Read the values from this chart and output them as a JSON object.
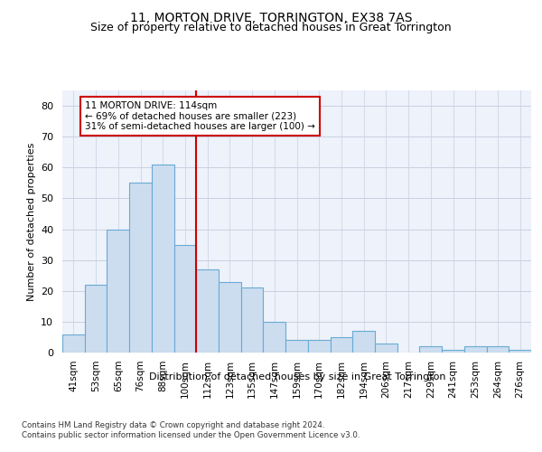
{
  "title": "11, MORTON DRIVE, TORRINGTON, EX38 7AS",
  "subtitle": "Size of property relative to detached houses in Great Torrington",
  "xlabel": "Distribution of detached houses by size in Great Torrington",
  "ylabel": "Number of detached properties",
  "categories": [
    "41sqm",
    "53sqm",
    "65sqm",
    "76sqm",
    "88sqm",
    "100sqm",
    "112sqm",
    "123sqm",
    "135sqm",
    "147sqm",
    "159sqm",
    "170sqm",
    "182sqm",
    "194sqm",
    "206sqm",
    "217sqm",
    "229sqm",
    "241sqm",
    "253sqm",
    "264sqm",
    "276sqm"
  ],
  "values": [
    6,
    22,
    40,
    55,
    61,
    35,
    27,
    23,
    21,
    10,
    4,
    4,
    5,
    7,
    3,
    0,
    2,
    1,
    2,
    2,
    1
  ],
  "bar_color": "#ccddf0",
  "bar_edge_color": "#6aaad4",
  "vline_x": 5.5,
  "vline_color": "#cc0000",
  "annotation_line1": "11 MORTON DRIVE: 114sqm",
  "annotation_line2": "← 69% of detached houses are smaller (223)",
  "annotation_line3": "31% of semi-detached houses are larger (100) →",
  "annotation_box_color": "#cc0000",
  "ylim": [
    0,
    85
  ],
  "yticks": [
    0,
    10,
    20,
    30,
    40,
    50,
    60,
    70,
    80
  ],
  "footnote1": "Contains HM Land Registry data © Crown copyright and database right 2024.",
  "footnote2": "Contains public sector information licensed under the Open Government Licence v3.0.",
  "title_fontsize": 10,
  "subtitle_fontsize": 9,
  "bg_color": "#edf2fb",
  "grid_color": "#c8d0e0"
}
